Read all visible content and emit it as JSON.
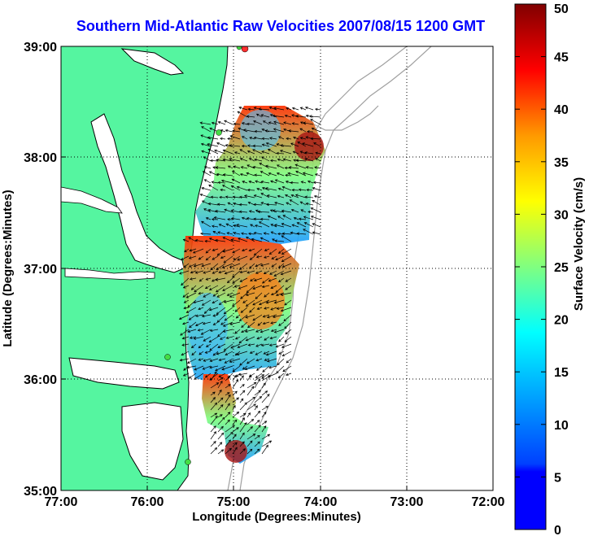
{
  "title": "Southern Mid-Atlantic Raw Velocities 2007/08/15 1200 GMT",
  "xlabel": "Longitude (Degrees:Minutes)",
  "ylabel": "Latitude (Degrees:Minutes)",
  "x_ticks": [
    "77:00",
    "76:00",
    "75:00",
    "74:00",
    "73:00",
    "72:00"
  ],
  "y_ticks": [
    "39:00",
    "38:00",
    "37:00",
    "36:00",
    "35:00"
  ],
  "colorbar": {
    "label": "Surface Velocity (cm/s)",
    "ticks": [
      "0",
      "5",
      "10",
      "15",
      "20",
      "25",
      "30",
      "35",
      "40",
      "45",
      "50"
    ],
    "range": [
      0,
      50
    ],
    "colormap": "jet"
  },
  "colors": {
    "land": "#55f5a0",
    "coast": "#000000",
    "bathymetry": "#a0a0a0",
    "title": "#0000ff",
    "grid": "#000000"
  },
  "chart_data": {
    "type": "heatmap",
    "xlabel": "Longitude (Degrees:Minutes)",
    "ylabel": "Latitude (Degrees:Minutes)",
    "xlim": [
      -77,
      -72
    ],
    "ylim": [
      35,
      39
    ],
    "grid": true,
    "colorbar_range": [
      0,
      50
    ]
  }
}
